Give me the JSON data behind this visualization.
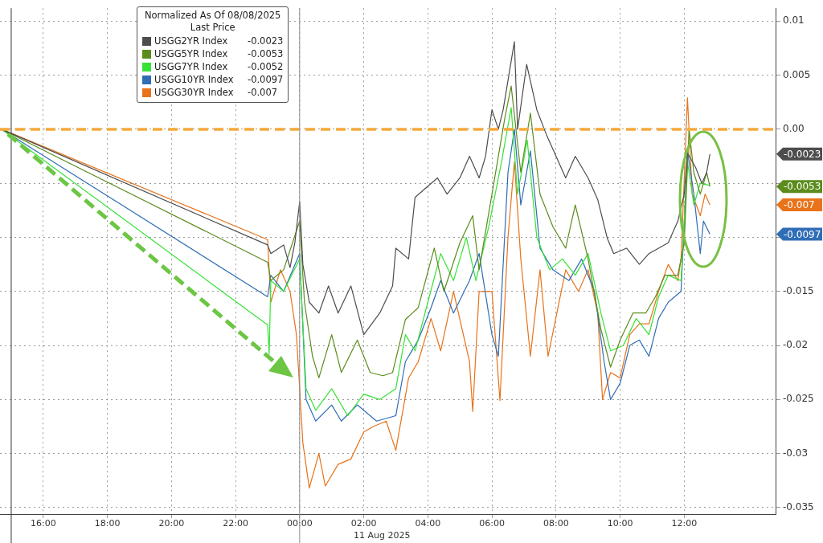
{
  "chart_data": {
    "type": "line",
    "legend_title": "Normalized As Of 08/08/2025\nLast Price",
    "legend": "top left",
    "grid": true,
    "xlim": [
      "2025-08-10T14:39",
      "2025-08-11T14:51"
    ],
    "xticks": [
      {
        "value": "2025-08-10T16:00",
        "label": "16:00"
      },
      {
        "value": "2025-08-10T18:00",
        "label": "18:00"
      },
      {
        "value": "2025-08-10T20:00",
        "label": "20:00"
      },
      {
        "value": "2025-08-10T22:00",
        "label": "22:00"
      },
      {
        "value": "2025-08-11T00:00",
        "label": "00:00"
      },
      {
        "value": "2025-08-11T02:00",
        "label": "02:00"
      },
      {
        "value": "2025-08-11T04:00",
        "label": "04:00"
      },
      {
        "value": "2025-08-11T06:00",
        "label": "06:00"
      },
      {
        "value": "2025-08-11T08:00",
        "label": "08:00"
      },
      {
        "value": "2025-08-11T10:00",
        "label": "10:00"
      },
      {
        "value": "2025-08-11T12:00",
        "label": "12:00"
      }
    ],
    "ylim": [
      -0.0356,
      0.0112
    ],
    "yticks": [
      0.01,
      0.005,
      {
        "value": 0,
        "label": "0.00"
      },
      {
        "value": -0.005,
        "label": null
      },
      {
        "value": -0.01,
        "label": null
      },
      -0.015,
      -0.02,
      -0.025,
      -0.03,
      -0.035
    ],
    "annotations": [
      "11 Aug 2025",
      "-0.0023",
      "-0.0053",
      "-0.0052",
      "-0.0097",
      "-0.007"
    ],
    "ref_lines": [
      {
        "axis": "y",
        "value": 0,
        "color": "#f5a93b",
        "line_style": "dashed"
      },
      {
        "axis": "x",
        "value": "2025-08-10T15:00",
        "color": "#333333",
        "line_style": "solid"
      },
      {
        "axis": "x",
        "value": "2025-08-11T00:00",
        "color": "#8c8c8c",
        "line_style": "solid"
      }
    ],
    "series": [
      {
        "name": "USGG2YR Index",
        "color": "#4d4d4d",
        "x": [
          "2025-08-10T14:42",
          "2025-08-10T23:00",
          "2025-08-10T23:06",
          "2025-08-10T23:30",
          "2025-08-10T23:42",
          "2025-08-10T23:51",
          "2025-08-11T00:00",
          "2025-08-11T00:06",
          "2025-08-11T00:18",
          "2025-08-11T00:36",
          "2025-08-11T00:54",
          "2025-08-11T01:12",
          "2025-08-11T01:36",
          "2025-08-11T02:00",
          "2025-08-11T02:30",
          "2025-08-11T02:54",
          "2025-08-11T03:00",
          "2025-08-11T03:24",
          "2025-08-11T03:36",
          "2025-08-11T04:18",
          "2025-08-11T04:36",
          "2025-08-11T05:00",
          "2025-08-11T05:18",
          "2025-08-11T05:36",
          "2025-08-11T05:48",
          "2025-08-11T06:00",
          "2025-08-11T06:12",
          "2025-08-11T06:21",
          "2025-08-11T06:42",
          "2025-08-11T06:48",
          "2025-08-11T07:05",
          "2025-08-11T07:24",
          "2025-08-11T07:42",
          "2025-08-11T08:00",
          "2025-08-11T08:18",
          "2025-08-11T08:36",
          "2025-08-11T09:00",
          "2025-08-11T09:18",
          "2025-08-11T09:36",
          "2025-08-11T09:48",
          "2025-08-11T10:12",
          "2025-08-11T10:36",
          "2025-08-11T10:54",
          "2025-08-11T11:12",
          "2025-08-11T11:30",
          "2025-08-11T11:48",
          "2025-08-11T12:00",
          "2025-08-11T12:06",
          "2025-08-11T12:21",
          "2025-08-11T12:33",
          "2025-08-11T12:42",
          "2025-08-11T12:48"
        ],
        "values": [
          0,
          -0.0107,
          -0.0115,
          -0.0107,
          -0.0128,
          -0.0105,
          -0.0067,
          -0.0125,
          -0.016,
          -0.017,
          -0.0145,
          -0.017,
          -0.0145,
          -0.019,
          -0.017,
          -0.0145,
          -0.011,
          -0.012,
          -0.0063,
          -0.0045,
          -0.006,
          -0.0045,
          -0.0025,
          -0.0045,
          -0.0025,
          0.0018,
          0,
          0.0018,
          0.0081,
          0,
          0.006,
          0.0018,
          -0.0005,
          -0.0025,
          -0.0045,
          -0.0025,
          -0.0045,
          -0.0065,
          -0.0101,
          -0.0115,
          -0.011,
          -0.0125,
          -0.0115,
          -0.011,
          -0.0105,
          -0.0085,
          -0.006,
          -0.0022,
          -0.0035,
          -0.005,
          -0.004,
          -0.0023
        ]
      },
      {
        "name": "USGG5YR Index",
        "color": "#5b8c1c",
        "x": [
          "2025-08-10T14:42",
          "2025-08-10T23:00",
          "2025-08-10T23:06",
          "2025-08-10T23:30",
          "2025-08-11T00:00",
          "2025-08-11T00:09",
          "2025-08-11T00:24",
          "2025-08-11T00:36",
          "2025-08-11T01:00",
          "2025-08-11T01:18",
          "2025-08-11T01:48",
          "2025-08-11T02:12",
          "2025-08-11T02:36",
          "2025-08-11T02:54",
          "2025-08-11T03:18",
          "2025-08-11T03:42",
          "2025-08-11T04:12",
          "2025-08-11T04:30",
          "2025-08-11T05:00",
          "2025-08-11T05:24",
          "2025-08-11T05:36",
          "2025-08-11T06:00",
          "2025-08-11T06:24",
          "2025-08-11T06:36",
          "2025-08-11T06:54",
          "2025-08-11T07:12",
          "2025-08-11T07:30",
          "2025-08-11T07:54",
          "2025-08-11T08:18",
          "2025-08-11T08:36",
          "2025-08-11T09:00",
          "2025-08-11T09:24",
          "2025-08-11T09:42",
          "2025-08-11T10:00",
          "2025-08-11T10:24",
          "2025-08-11T10:48",
          "2025-08-11T11:06",
          "2025-08-11T11:24",
          "2025-08-11T11:48",
          "2025-08-11T12:00",
          "2025-08-11T12:09",
          "2025-08-11T12:18",
          "2025-08-11T12:30",
          "2025-08-11T12:42",
          "2025-08-11T12:48"
        ],
        "values": [
          0,
          -0.0123,
          -0.014,
          -0.013,
          -0.0085,
          -0.016,
          -0.021,
          -0.023,
          -0.019,
          -0.0225,
          -0.0195,
          -0.0225,
          -0.0228,
          -0.0225,
          -0.0176,
          -0.0165,
          -0.011,
          -0.015,
          -0.0105,
          -0.008,
          -0.013,
          -0.006,
          0.001,
          0.004,
          -0.004,
          0.0015,
          -0.006,
          -0.009,
          -0.011,
          -0.007,
          -0.012,
          -0.0185,
          -0.022,
          -0.0195,
          -0.017,
          -0.017,
          -0.0155,
          -0.0135,
          -0.0135,
          -0.0105,
          0,
          -0.004,
          -0.006,
          -0.004,
          -0.0053
        ]
      },
      {
        "name": "USGG7YR Index",
        "color": "#36e236",
        "x": [
          "2025-08-10T14:42",
          "2025-08-10T23:00",
          "2025-08-10T23:03",
          "2025-08-10T23:06",
          "2025-08-10T23:30",
          "2025-08-11T00:00",
          "2025-08-11T00:12",
          "2025-08-11T00:30",
          "2025-08-11T01:00",
          "2025-08-11T01:30",
          "2025-08-11T02:00",
          "2025-08-11T02:30",
          "2025-08-11T03:00",
          "2025-08-11T03:18",
          "2025-08-11T03:36",
          "2025-08-11T04:00",
          "2025-08-11T04:24",
          "2025-08-11T04:48",
          "2025-08-11T05:12",
          "2025-08-11T05:30",
          "2025-08-11T05:54",
          "2025-08-11T06:18",
          "2025-08-11T06:36",
          "2025-08-11T06:48",
          "2025-08-11T07:06",
          "2025-08-11T07:24",
          "2025-08-11T07:48",
          "2025-08-11T08:12",
          "2025-08-11T08:36",
          "2025-08-11T09:00",
          "2025-08-11T09:24",
          "2025-08-11T09:42",
          "2025-08-11T10:06",
          "2025-08-11T10:30",
          "2025-08-11T10:54",
          "2025-08-11T11:12",
          "2025-08-11T11:30",
          "2025-08-11T11:54",
          "2025-08-11T12:06",
          "2025-08-11T12:18",
          "2025-08-11T12:30",
          "2025-08-11T12:48"
        ],
        "values": [
          0,
          -0.0181,
          -0.0208,
          -0.014,
          -0.015,
          -0.012,
          -0.024,
          -0.026,
          -0.024,
          -0.0265,
          -0.0245,
          -0.025,
          -0.024,
          -0.019,
          -0.0205,
          -0.016,
          -0.0115,
          -0.014,
          -0.01,
          -0.014,
          -0.009,
          -0.003,
          0.002,
          -0.006,
          -0.001,
          -0.01,
          -0.013,
          -0.012,
          -0.0135,
          -0.0115,
          -0.017,
          -0.0205,
          -0.02,
          -0.0175,
          -0.019,
          -0.0155,
          -0.0135,
          -0.014,
          -0.003,
          -0.007,
          -0.005,
          -0.0052
        ]
      },
      {
        "name": "USGG10YR Index",
        "color": "#2f6db5",
        "x": [
          "2025-08-10T14:42",
          "2025-08-10T23:00",
          "2025-08-10T23:06",
          "2025-08-10T23:30",
          "2025-08-11T00:00",
          "2025-08-11T00:12",
          "2025-08-11T00:30",
          "2025-08-11T01:00",
          "2025-08-11T01:18",
          "2025-08-11T01:48",
          "2025-08-11T02:24",
          "2025-08-11T03:00",
          "2025-08-11T03:18",
          "2025-08-11T03:42",
          "2025-08-11T04:06",
          "2025-08-11T04:24",
          "2025-08-11T04:48",
          "2025-08-11T05:18",
          "2025-08-11T05:36",
          "2025-08-11T06:00",
          "2025-08-11T06:12",
          "2025-08-11T06:30",
          "2025-08-11T06:42",
          "2025-08-11T06:54",
          "2025-08-11T07:12",
          "2025-08-11T07:30",
          "2025-08-11T07:54",
          "2025-08-11T08:24",
          "2025-08-11T08:48",
          "2025-08-11T09:12",
          "2025-08-11T09:30",
          "2025-08-11T09:42",
          "2025-08-11T10:00",
          "2025-08-11T10:18",
          "2025-08-11T10:36",
          "2025-08-11T10:54",
          "2025-08-11T11:12",
          "2025-08-11T11:30",
          "2025-08-11T11:54",
          "2025-08-11T12:06",
          "2025-08-11T12:18",
          "2025-08-11T12:30",
          "2025-08-11T12:36",
          "2025-08-11T12:48"
        ],
        "values": [
          0,
          -0.0155,
          -0.0135,
          -0.015,
          -0.0115,
          -0.025,
          -0.027,
          -0.0255,
          -0.027,
          -0.0255,
          -0.027,
          -0.0265,
          -0.0215,
          -0.0195,
          -0.0165,
          -0.014,
          -0.017,
          -0.014,
          -0.0115,
          -0.019,
          -0.021,
          -0.004,
          0,
          -0.007,
          -0.002,
          -0.011,
          -0.013,
          -0.014,
          -0.012,
          -0.015,
          -0.0215,
          -0.025,
          -0.0235,
          -0.02,
          -0.0195,
          -0.021,
          -0.0175,
          -0.016,
          -0.015,
          -0.002,
          -0.006,
          -0.0115,
          -0.0085,
          -0.0097
        ]
      },
      {
        "name": "USGG30YR Index",
        "color": "#e8731a",
        "x": [
          "2025-08-10T14:42",
          "2025-08-10T23:00",
          "2025-08-10T23:06",
          "2025-08-10T23:24",
          "2025-08-10T23:42",
          "2025-08-10T23:54",
          "2025-08-11T00:06",
          "2025-08-11T00:18",
          "2025-08-11T00:36",
          "2025-08-11T00:48",
          "2025-08-11T01:12",
          "2025-08-11T01:36",
          "2025-08-11T02:00",
          "2025-08-11T02:18",
          "2025-08-11T02:42",
          "2025-08-11T03:00",
          "2025-08-11T03:24",
          "2025-08-11T03:42",
          "2025-08-11T04:06",
          "2025-08-11T04:24",
          "2025-08-11T04:48",
          "2025-08-11T05:18",
          "2025-08-11T05:24",
          "2025-08-11T05:36",
          "2025-08-11T06:00",
          "2025-08-11T06:15",
          "2025-08-11T06:30",
          "2025-08-11T06:42",
          "2025-08-11T06:54",
          "2025-08-11T07:12",
          "2025-08-11T07:30",
          "2025-08-11T07:45",
          "2025-08-11T08:18",
          "2025-08-11T08:42",
          "2025-08-11T09:00",
          "2025-08-11T09:18",
          "2025-08-11T09:27",
          "2025-08-11T09:42",
          "2025-08-11T10:00",
          "2025-08-11T10:18",
          "2025-08-11T10:36",
          "2025-08-11T10:54",
          "2025-08-11T11:12",
          "2025-08-11T11:30",
          "2025-08-11T11:48",
          "2025-08-11T11:54",
          "2025-08-11T12:06",
          "2025-08-11T12:15",
          "2025-08-11T12:30",
          "2025-08-11T12:39",
          "2025-08-11T12:48"
        ],
        "values": [
          0,
          -0.0102,
          -0.016,
          -0.013,
          -0.015,
          -0.019,
          -0.029,
          -0.0332,
          -0.03,
          -0.033,
          -0.031,
          -0.0305,
          -0.028,
          -0.0275,
          -0.027,
          -0.0297,
          -0.023,
          -0.0215,
          -0.0175,
          -0.0205,
          -0.015,
          -0.0215,
          -0.0261,
          -0.015,
          -0.015,
          -0.0251,
          -0.01,
          -0.003,
          -0.012,
          -0.021,
          -0.013,
          -0.021,
          -0.013,
          -0.015,
          -0.013,
          -0.017,
          -0.025,
          -0.0225,
          -0.023,
          -0.019,
          -0.018,
          -0.018,
          -0.015,
          -0.0125,
          -0.014,
          -0.012,
          0.0029,
          -0.006,
          -0.008,
          -0.006,
          -0.007
        ]
      }
    ]
  }
}
